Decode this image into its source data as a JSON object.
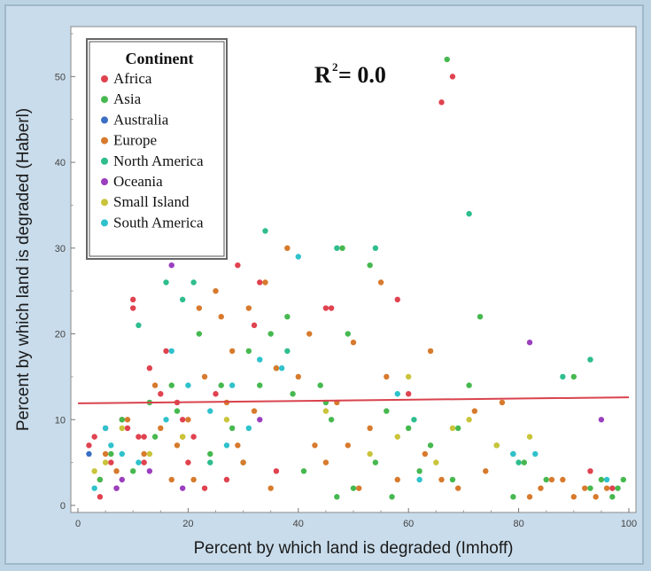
{
  "chart_data": {
    "type": "scatter",
    "xlabel": "Percent by which land is degraded (Imhoff)",
    "ylabel": "Percent by which land is degraded (Haberl)",
    "xlim": [
      0,
      100
    ],
    "ylim": [
      0,
      55
    ],
    "xticks": [
      0,
      20,
      40,
      60,
      80,
      100
    ],
    "yticks": [
      0,
      10,
      20,
      30,
      40,
      50
    ],
    "annotation": {
      "base": "R",
      "sup": "2",
      "rest": " = 0.0"
    },
    "legend": {
      "title": "Continent",
      "position": "top-left"
    },
    "grid": false,
    "trendline": {
      "x": [
        0,
        100
      ],
      "y": [
        11.9,
        12.6
      ],
      "color": "#d9434d"
    },
    "series": [
      {
        "name": "Africa",
        "color": "#e0424f",
        "x": [
          2,
          3,
          4,
          4,
          5,
          6,
          7,
          8,
          9,
          10,
          10,
          11,
          12,
          12,
          13,
          15,
          16,
          18,
          19,
          20,
          21,
          23,
          25,
          27,
          29,
          32,
          33,
          36,
          45,
          46,
          58,
          60,
          66,
          68,
          93,
          97
        ],
        "y": [
          7,
          8,
          3,
          1,
          9,
          5,
          2,
          10,
          9,
          24,
          23,
          8,
          8,
          5,
          16,
          13,
          18,
          12,
          10,
          5,
          8,
          2,
          13,
          3,
          28,
          21,
          26,
          4,
          23,
          23,
          24,
          13,
          47,
          50,
          4,
          2
        ]
      },
      {
        "name": "Asia",
        "color": "#46b84f",
        "x": [
          4,
          6,
          8,
          10,
          13,
          14,
          17,
          18,
          22,
          24,
          26,
          28,
          30,
          31,
          33,
          35,
          36,
          38,
          39,
          41,
          44,
          45,
          46,
          47,
          48,
          49,
          50,
          53,
          54,
          56,
          57,
          60,
          62,
          64,
          67,
          68,
          69,
          71,
          73,
          76,
          79,
          81,
          85,
          90,
          93,
          95,
          97,
          98,
          99
        ],
        "y": [
          3,
          6,
          10,
          4,
          12,
          8,
          14,
          11,
          20,
          6,
          14,
          9,
          5,
          18,
          14,
          20,
          16,
          22,
          13,
          4,
          14,
          12,
          10,
          1,
          30,
          20,
          2,
          28,
          5,
          11,
          1,
          9,
          4,
          7,
          52,
          3,
          9,
          14,
          22,
          7,
          1,
          5,
          3,
          15,
          2,
          3,
          1,
          2,
          3
        ]
      },
      {
        "name": "Australia",
        "color": "#3a6fc4",
        "x": [
          2
        ],
        "y": [
          6
        ]
      },
      {
        "name": "Europe",
        "color": "#d77a2d",
        "x": [
          5,
          7,
          9,
          12,
          14,
          15,
          17,
          18,
          19,
          20,
          21,
          22,
          23,
          25,
          26,
          27,
          28,
          29,
          30,
          31,
          32,
          34,
          35,
          36,
          38,
          40,
          42,
          43,
          45,
          47,
          49,
          50,
          51,
          53,
          55,
          56,
          58,
          63,
          64,
          66,
          69,
          72,
          74,
          77,
          79,
          82,
          84,
          86,
          88,
          90,
          92,
          94,
          96
        ],
        "y": [
          6,
          4,
          10,
          6,
          14,
          9,
          3,
          7,
          8,
          10,
          3,
          23,
          15,
          25,
          22,
          12,
          18,
          7,
          5,
          23,
          11,
          26,
          2,
          16,
          30,
          15,
          20,
          7,
          5,
          12,
          7,
          19,
          2,
          9,
          26,
          15,
          3,
          6,
          18,
          3,
          2,
          11,
          4,
          12,
          6,
          1,
          2,
          3,
          3,
          1,
          2,
          1,
          2
        ]
      },
      {
        "name": "North America",
        "color": "#2ebd8f",
        "x": [
          11,
          16,
          19,
          21,
          24,
          34,
          38,
          47,
          54,
          61,
          71,
          79,
          88,
          93,
          80
        ],
        "y": [
          21,
          26,
          24,
          26,
          5,
          32,
          18,
          30,
          30,
          10,
          34,
          6,
          15,
          17,
          5
        ]
      },
      {
        "name": "Oceania",
        "color": "#9a3fbe",
        "x": [
          7,
          8,
          13,
          17,
          19,
          33,
          82,
          95
        ],
        "y": [
          2,
          3,
          4,
          28,
          2,
          10,
          19,
          10
        ]
      },
      {
        "name": "Small Island",
        "color": "#c9c43a",
        "x": [
          3,
          5,
          8,
          13,
          19,
          27,
          45,
          53,
          58,
          60,
          65,
          68,
          71,
          76,
          82
        ],
        "y": [
          4,
          5,
          9,
          6,
          8,
          10,
          11,
          6,
          8,
          15,
          5,
          9,
          10,
          7,
          8
        ]
      },
      {
        "name": "South America",
        "color": "#2ec2cc",
        "x": [
          3,
          5,
          6,
          8,
          11,
          16,
          17,
          20,
          24,
          27,
          28,
          31,
          33,
          37,
          40,
          58,
          62,
          79,
          83,
          96
        ],
        "y": [
          2,
          9,
          7,
          6,
          5,
          10,
          18,
          14,
          11,
          7,
          14,
          9,
          17,
          16,
          29,
          13,
          3,
          6,
          6,
          3
        ]
      }
    ]
  }
}
